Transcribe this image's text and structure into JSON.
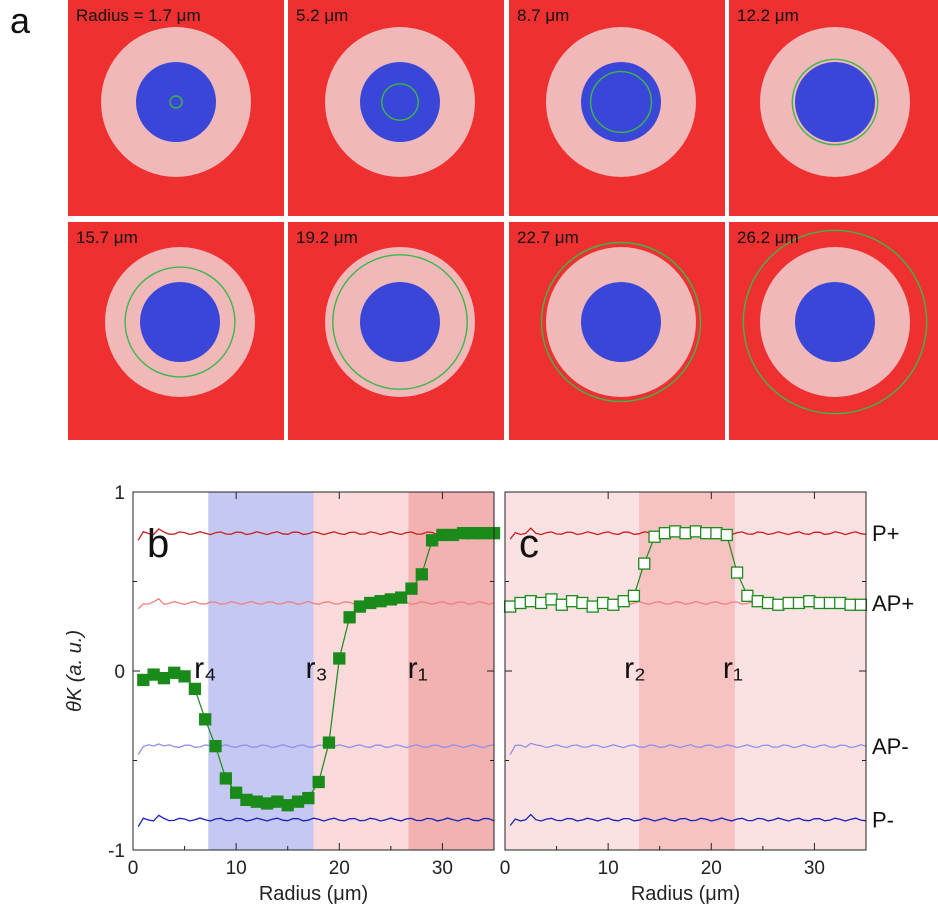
{
  "figure": {
    "panel_a": {
      "letter": "a",
      "tiles": [
        {
          "label": "Radius = 1.7 μm",
          "radius_um": 1.7
        },
        {
          "label": "5.2 μm",
          "radius_um": 5.2
        },
        {
          "label": "8.7 μm",
          "radius_um": 8.7
        },
        {
          "label": "12.2 μm",
          "radius_um": 12.2
        },
        {
          "label": "15.7 μm",
          "radius_um": 15.7
        },
        {
          "label": "19.2 μm",
          "radius_um": 19.2
        },
        {
          "label": "22.7 μm",
          "radius_um": 22.7
        },
        {
          "label": "26.2 μm",
          "radius_um": 26.2
        }
      ],
      "colors": {
        "background": "#ee3030",
        "ring": "#f0b8b8",
        "core": "#3a46d8",
        "circle": "#3ab84a"
      }
    }
  },
  "chart_data": [
    {
      "type": "line",
      "panel_label": "b",
      "xlabel": "Radius (μm)",
      "ylabel": "θK (a. u.)",
      "xlim": [
        0,
        35
      ],
      "ylim": [
        -1,
        1
      ],
      "xticks": [
        0,
        10,
        20,
        30
      ],
      "yticks": [
        -1,
        0,
        1
      ],
      "x_tick_labels": [
        "0",
        "10",
        "20",
        "30"
      ],
      "y_tick_labels": [
        "-1",
        "0",
        "1"
      ],
      "bands": [
        {
          "x0": 7.3,
          "x1": 17.5,
          "color": "#c6c8f4"
        },
        {
          "x0": 17.5,
          "x1": 26.7,
          "color": "#fadada"
        },
        {
          "x0": 26.7,
          "x1": 35,
          "color": "#f2b2b2"
        }
      ],
      "annotations": [
        {
          "text": "r₄",
          "x": 7.0,
          "y": -0.04
        },
        {
          "text": "r₃",
          "x": 17.8,
          "y": -0.04
        },
        {
          "text": "r₁",
          "x": 27.6,
          "y": -0.04
        }
      ],
      "marker": "filled-square",
      "series_color": "#1a8a1a",
      "series": [
        {
          "x": [
            1,
            2,
            3,
            4,
            5,
            6,
            7,
            8,
            9,
            10,
            11,
            12,
            13,
            14,
            15,
            16,
            17,
            18,
            19,
            20,
            21,
            22,
            23,
            24,
            25,
            26,
            27,
            28,
            29,
            30,
            31,
            32,
            33,
            34,
            35
          ],
          "y": [
            -0.05,
            -0.02,
            -0.04,
            -0.01,
            -0.03,
            -0.1,
            -0.27,
            -0.42,
            -0.6,
            -0.68,
            -0.72,
            -0.73,
            -0.74,
            -0.73,
            -0.75,
            -0.73,
            -0.71,
            -0.62,
            -0.4,
            0.07,
            0.3,
            0.36,
            0.38,
            0.39,
            0.4,
            0.41,
            0.46,
            0.54,
            0.73,
            0.76,
            0.76,
            0.77,
            0.77,
            0.77,
            0.77
          ]
        }
      ]
    },
    {
      "type": "line",
      "panel_label": "c",
      "xlabel": "Radius (μm)",
      "xlim": [
        0,
        35
      ],
      "ylim": [
        -1,
        1
      ],
      "xticks": [
        0,
        10,
        20,
        30
      ],
      "x_tick_labels": [
        "0",
        "10",
        "20",
        "30"
      ],
      "bands": [
        {
          "x0": 0,
          "x1": 13,
          "color": "#fbe1e1"
        },
        {
          "x0": 13,
          "x1": 22.3,
          "color": "#f6c2c2"
        },
        {
          "x0": 22.3,
          "x1": 35,
          "color": "#fbe1e1"
        }
      ],
      "annotations": [
        {
          "text": "r₂",
          "x": 12.6,
          "y": -0.04
        },
        {
          "text": "r₁",
          "x": 22.1,
          "y": -0.04
        }
      ],
      "marker": "open-square",
      "series_color": "#1a8a1a",
      "series": [
        {
          "x": [
            0.5,
            1.5,
            2.5,
            3.5,
            4.5,
            5.5,
            6.5,
            7.5,
            8.5,
            9.5,
            10.5,
            11.5,
            12.5,
            13.5,
            14.5,
            15.5,
            16.5,
            17.5,
            18.5,
            19.5,
            20.5,
            21.5,
            22.5,
            23.5,
            24.5,
            25.5,
            26.5,
            27.5,
            28.5,
            29.5,
            30.5,
            31.5,
            32.5,
            33.5,
            34.5
          ],
          "y": [
            0.36,
            0.38,
            0.39,
            0.38,
            0.4,
            0.37,
            0.39,
            0.38,
            0.36,
            0.38,
            0.37,
            0.39,
            0.42,
            0.6,
            0.75,
            0.77,
            0.78,
            0.77,
            0.78,
            0.77,
            0.77,
            0.76,
            0.55,
            0.42,
            0.39,
            0.38,
            0.37,
            0.38,
            0.38,
            0.39,
            0.38,
            0.38,
            0.38,
            0.37,
            0.37
          ]
        }
      ]
    }
  ],
  "reference_curves": {
    "labels": [
      "P+",
      "AP+",
      "AP-",
      "P-"
    ],
    "levels": [
      0.77,
      0.38,
      -0.42,
      -0.83
    ],
    "colors": [
      "#c81e1e",
      "#f08080",
      "#9090e8",
      "#1a22b8"
    ]
  }
}
